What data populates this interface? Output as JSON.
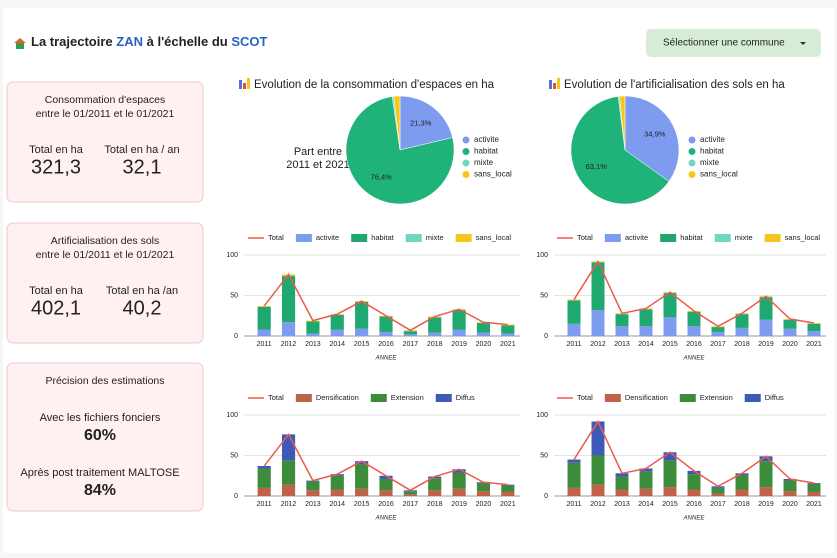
{
  "header": {
    "title_parts": [
      "La trajectoire",
      "ZAN",
      "à l'échelle du",
      "SCOT"
    ],
    "button": "Sélectionner une commune"
  },
  "cards": [
    {
      "title_lines": [
        "Consommation d'espaces",
        "entre le 01/2011 et le 01/2021"
      ],
      "metrics": [
        {
          "label": "Total en ha",
          "value": "321,3"
        },
        {
          "label": "Total en ha / an",
          "value": "32,1"
        }
      ]
    },
    {
      "title_lines": [
        "Artificialisation des sols",
        "entre le 01/2011 et le 01/2021"
      ],
      "metrics": [
        {
          "label": "Total en ha",
          "value": "402,1"
        },
        {
          "label": "Total en ha /an",
          "value": "40,2"
        }
      ]
    },
    {
      "title_lines": [
        "Précision des estimations"
      ],
      "metrics": [
        {
          "label": "Avec les fichiers fonciers",
          "value": "60%",
          "color": "#f2b41c"
        },
        {
          "label": "Après post traitement MALTOSE",
          "value": "84%",
          "color": "#3aa84a"
        }
      ]
    }
  ],
  "chart_data": [
    {
      "type": "pie",
      "title": "Evolution de la consommation d'espaces en ha",
      "annotation": [
        "Part entre",
        "2011 et 2021"
      ],
      "categories": [
        "activite",
        "habitat",
        "mixte",
        "sans_local"
      ],
      "values": [
        21.3,
        76.4,
        0.5,
        1.8
      ],
      "value_labels": [
        "21,3%",
        "76,4%",
        null,
        null
      ],
      "colors": [
        "#7d9bef",
        "#1fb37a",
        "#6fd6c2",
        "#f5c71a"
      ]
    },
    {
      "type": "pie",
      "title": "Evolution de l'artificialisation des sols en ha",
      "categories": [
        "activite",
        "habitat",
        "mixte",
        "sans_local"
      ],
      "values": [
        34.9,
        63.1,
        0.4,
        1.6
      ],
      "value_labels": [
        "34,9%",
        "63,1%",
        null,
        null
      ],
      "colors": [
        "#7d9bef",
        "#1fb37a",
        "#6fd6c2",
        "#f5c71a"
      ]
    },
    {
      "type": "bar",
      "stacked": true,
      "xlabel": "ANNEE",
      "categories": [
        "2011",
        "2012",
        "2013",
        "2014",
        "2015",
        "2016",
        "2017",
        "2018",
        "2019",
        "2020",
        "2021"
      ],
      "ylim": [
        0,
        100
      ],
      "yticks": [
        0,
        50,
        100
      ],
      "grid": true,
      "series": [
        {
          "name": "Total",
          "type": "line",
          "color": "#ee5a50",
          "values": [
            37,
            76,
            19,
            27,
            43,
            25,
            7,
            24,
            33,
            17,
            14
          ]
        },
        {
          "name": "activite",
          "color": "#7d9bef",
          "values": [
            8,
            17,
            3,
            8,
            9,
            5,
            2,
            4,
            8,
            4,
            3
          ]
        },
        {
          "name": "habitat",
          "color": "#1fa970",
          "values": [
            28,
            57,
            15,
            18,
            33,
            19,
            4,
            19,
            24,
            12,
            10
          ]
        },
        {
          "name": "mixte",
          "color": "#6fd6c2",
          "values": [
            0,
            0,
            0,
            0,
            0,
            0,
            0,
            0,
            0,
            0,
            0
          ]
        },
        {
          "name": "sans_local",
          "color": "#f5c71a",
          "values": [
            1,
            2,
            1,
            1,
            1,
            1,
            1,
            1,
            1,
            1,
            1
          ]
        }
      ]
    },
    {
      "type": "bar",
      "stacked": true,
      "xlabel": "ANNEE",
      "categories": [
        "2011",
        "2012",
        "2013",
        "2014",
        "2015",
        "2016",
        "2017",
        "2018",
        "2019",
        "2020",
        "2021"
      ],
      "ylim": [
        0,
        100
      ],
      "yticks": [
        0,
        50,
        100
      ],
      "grid": true,
      "series": [
        {
          "name": "Total",
          "type": "line",
          "color": "#ee5a50",
          "values": [
            45,
            92,
            28,
            34,
            54,
            31,
            12,
            28,
            49,
            21,
            16
          ]
        },
        {
          "name": "activite",
          "color": "#7d9bef",
          "values": [
            15,
            32,
            12,
            12,
            23,
            12,
            5,
            10,
            20,
            9,
            6
          ]
        },
        {
          "name": "habitat",
          "color": "#1fa970",
          "values": [
            29,
            59,
            15,
            21,
            30,
            18,
            6,
            17,
            28,
            11,
            9
          ]
        },
        {
          "name": "mixte",
          "color": "#6fd6c2",
          "values": [
            0,
            0,
            0,
            0,
            0,
            0,
            0,
            0,
            0,
            0,
            0
          ]
        },
        {
          "name": "sans_local",
          "color": "#f5c71a",
          "values": [
            1,
            1,
            1,
            1,
            1,
            1,
            1,
            1,
            1,
            1,
            1
          ]
        }
      ]
    },
    {
      "type": "bar",
      "stacked": true,
      "xlabel": "ANNEE",
      "categories": [
        "2011",
        "2012",
        "2013",
        "2014",
        "2015",
        "2016",
        "2017",
        "2018",
        "2019",
        "2020",
        "2021"
      ],
      "ylim": [
        0,
        100
      ],
      "yticks": [
        0,
        50,
        100
      ],
      "grid": true,
      "series": [
        {
          "name": "Total",
          "type": "line",
          "color": "#ee5a50",
          "values": [
            37,
            76,
            19,
            27,
            43,
            25,
            7,
            24,
            33,
            17,
            14
          ]
        },
        {
          "name": "Densification",
          "color": "#c0614a",
          "values": [
            10,
            14,
            7,
            8,
            9,
            7,
            2,
            7,
            9,
            6,
            5
          ]
        },
        {
          "name": "Extension",
          "color": "#3c8c3c",
          "values": [
            24,
            30,
            11,
            17,
            30,
            14,
            4,
            15,
            20,
            10,
            8
          ]
        },
        {
          "name": "Diffus",
          "color": "#3e5ab8",
          "values": [
            3,
            32,
            1,
            2,
            4,
            4,
            1,
            2,
            4,
            1,
            1
          ]
        }
      ]
    },
    {
      "type": "bar",
      "stacked": true,
      "xlabel": "ANNEE",
      "categories": [
        "2011",
        "2012",
        "2013",
        "2014",
        "2015",
        "2016",
        "2017",
        "2018",
        "2019",
        "2020",
        "2021"
      ],
      "ylim": [
        0,
        100
      ],
      "yticks": [
        0,
        50,
        100
      ],
      "grid": true,
      "series": [
        {
          "name": "Total",
          "type": "line",
          "color": "#ee5a50",
          "values": [
            45,
            92,
            28,
            34,
            54,
            31,
            12,
            28,
            49,
            21,
            16
          ]
        },
        {
          "name": "Densification",
          "color": "#c0614a",
          "values": [
            10,
            14,
            8,
            9,
            11,
            8,
            3,
            8,
            11,
            6,
            5
          ]
        },
        {
          "name": "Extension",
          "color": "#3c8c3c",
          "values": [
            31,
            36,
            16,
            21,
            33,
            19,
            7,
            18,
            32,
            13,
            10
          ]
        },
        {
          "name": "Diffus",
          "color": "#3e5ab8",
          "values": [
            4,
            42,
            4,
            4,
            10,
            4,
            2,
            2,
            6,
            2,
            1
          ]
        }
      ]
    }
  ]
}
